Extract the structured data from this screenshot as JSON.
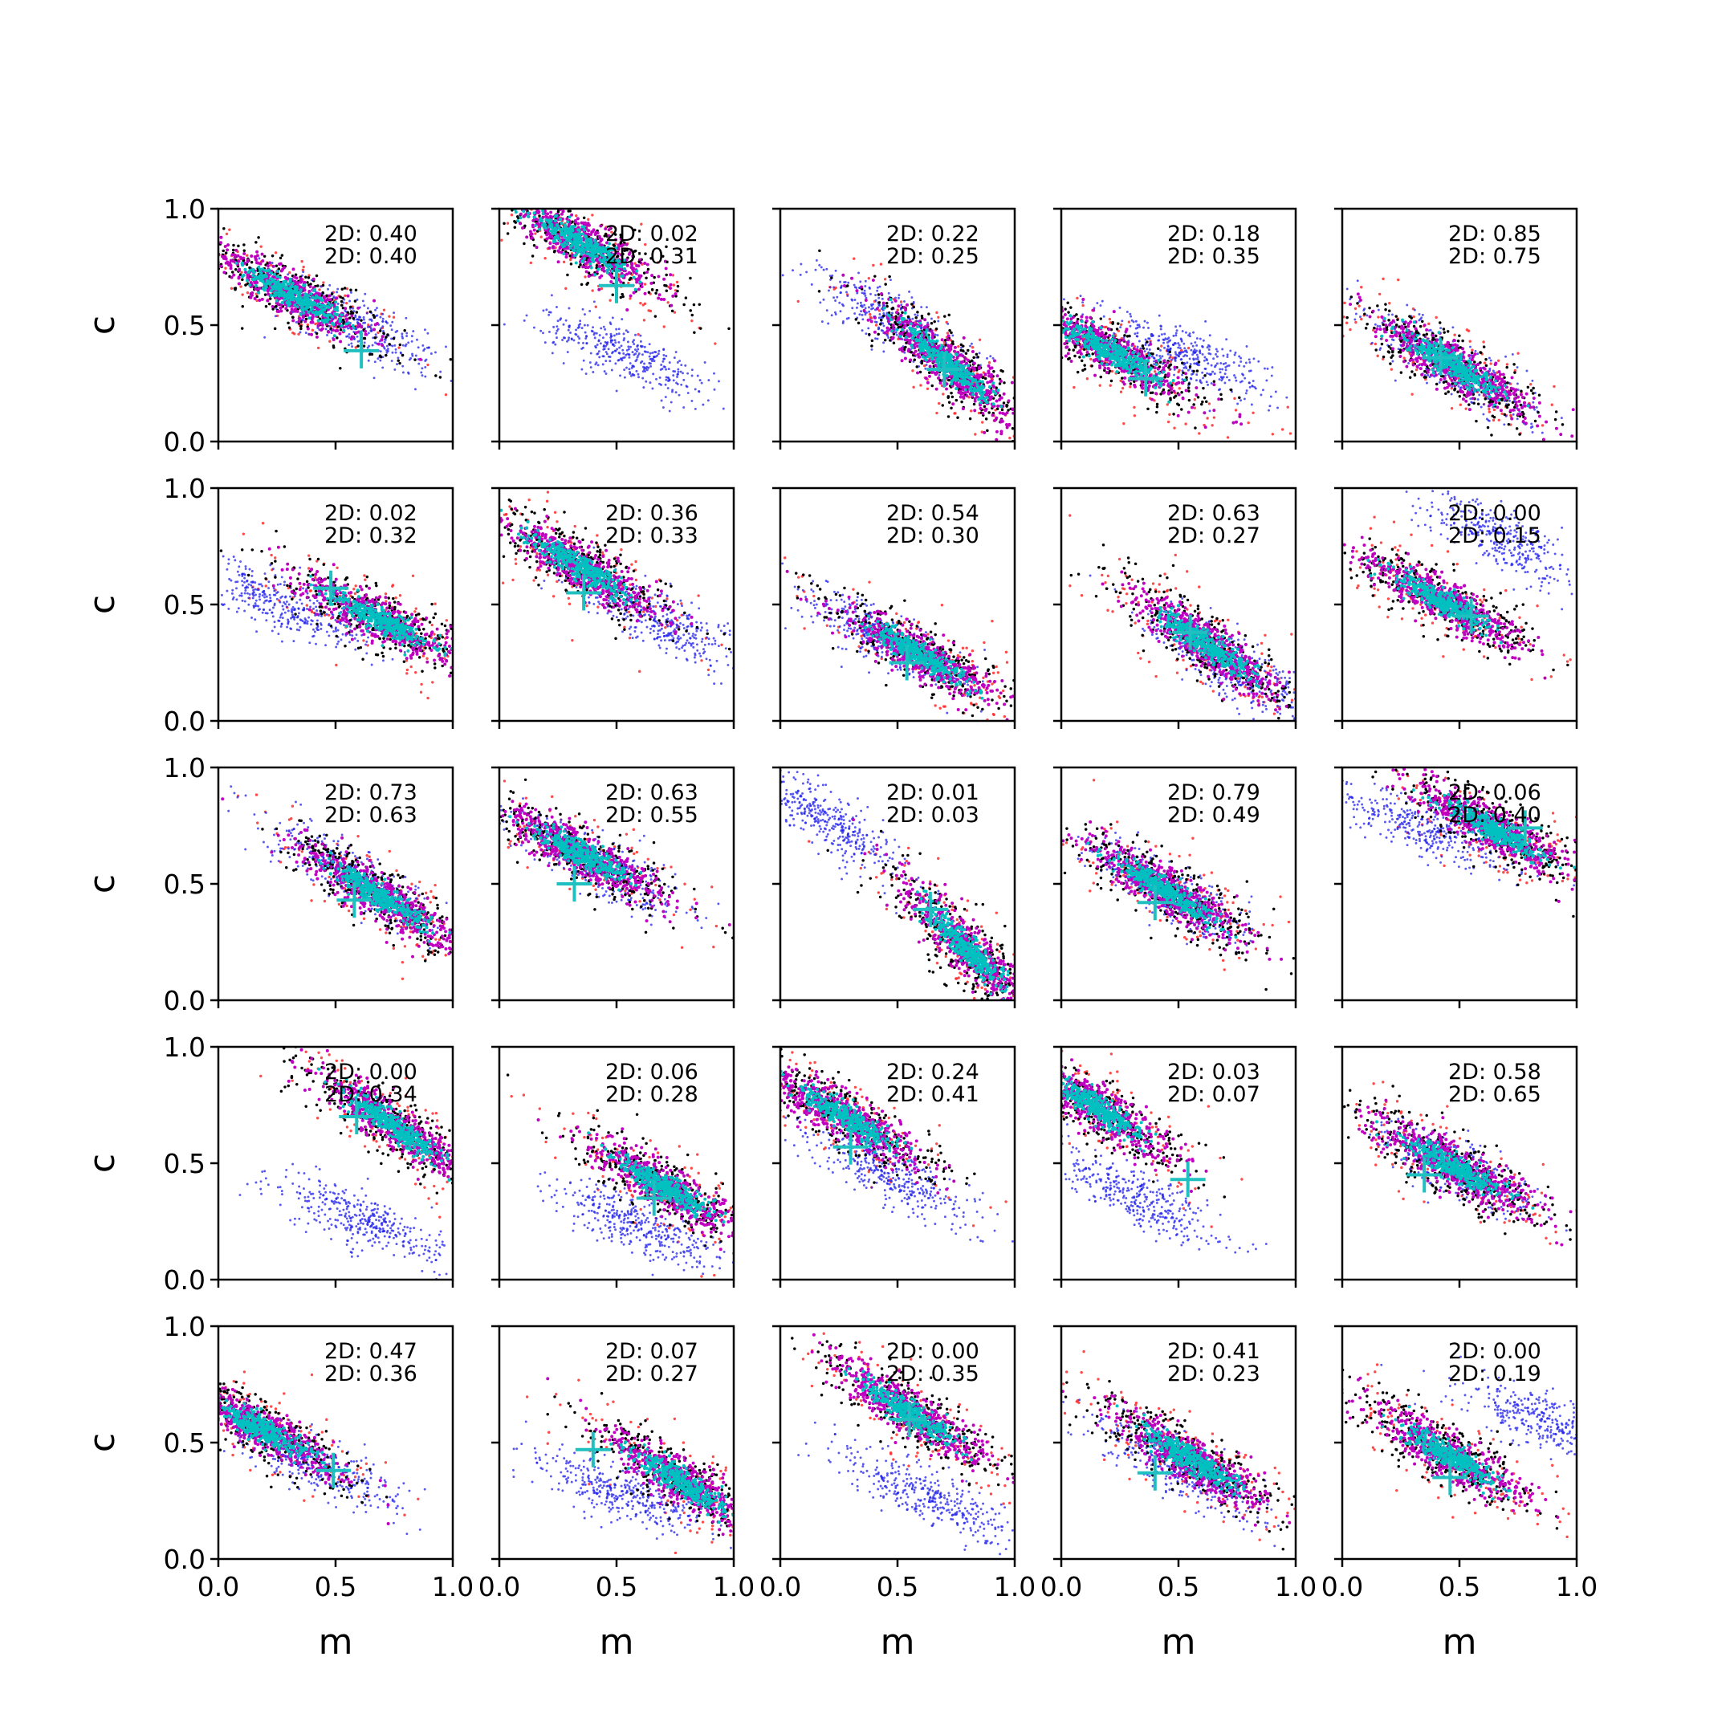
{
  "chart_data": {
    "type": "scatter",
    "layout": {
      "rows": 5,
      "cols": 5
    },
    "xlabel": "m",
    "ylabel": "c",
    "xlim": [
      0,
      1
    ],
    "ylim": [
      0,
      1
    ],
    "xticks": [
      "0.0",
      "0.5",
      "1.0"
    ],
    "yticks": [
      "0.0",
      "0.5",
      "1.0"
    ],
    "grid": false,
    "colors": {
      "outer_red": "#ff2a2a",
      "black": "#000000",
      "blue": "#2222ee",
      "magenta": "#c000c0",
      "cyan": "#00c0c0",
      "marker": "#20c0c0"
    },
    "panels": [
      {
        "labels": [
          "2D: 0.40",
          "2D: 0.40"
        ],
        "main": {
          "m": 0.32,
          "c": 0.63,
          "slope": -0.55
        },
        "blue": {
          "m": 0.58,
          "c": 0.5,
          "slope": -0.55
        },
        "marker": {
          "m": 0.61,
          "c": 0.39
        }
      },
      {
        "labels": [
          "2D: 0.02",
          "2D: 0.31"
        ],
        "main": {
          "m": 0.35,
          "c": 0.85,
          "slope": -0.6
        },
        "blue": {
          "m": 0.55,
          "c": 0.37,
          "slope": -0.45
        },
        "marker": {
          "m": 0.5,
          "c": 0.67
        }
      },
      {
        "labels": [
          "2D: 0.22",
          "2D: 0.25"
        ],
        "main": {
          "m": 0.72,
          "c": 0.33,
          "slope": -0.85
        },
        "blue": {
          "m": 0.5,
          "c": 0.5,
          "slope": -0.6
        },
        "marker": {
          "m": 0.7,
          "c": 0.31
        }
      },
      {
        "labels": [
          "2D: 0.18",
          "2D: 0.35"
        ],
        "main": {
          "m": 0.22,
          "c": 0.38,
          "slope": -0.55
        },
        "blue": {
          "m": 0.52,
          "c": 0.38,
          "slope": -0.4
        },
        "marker": {
          "m": 0.36,
          "c": 0.27
        }
      },
      {
        "labels": [
          "2D: 0.85",
          "2D: 0.75"
        ],
        "main": {
          "m": 0.48,
          "c": 0.32,
          "slope": -0.6
        },
        "blue": {
          "m": 0.48,
          "c": 0.32,
          "slope": -0.6
        },
        "marker": {
          "m": 0.42,
          "c": 0.36
        }
      },
      {
        "labels": [
          "2D: 0.02",
          "2D: 0.32"
        ],
        "main": {
          "m": 0.7,
          "c": 0.43,
          "slope": -0.5
        },
        "blue": {
          "m": 0.28,
          "c": 0.5,
          "slope": -0.45
        },
        "marker": {
          "m": 0.48,
          "c": 0.57
        }
      },
      {
        "labels": [
          "2D: 0.36",
          "2D: 0.33"
        ],
        "main": {
          "m": 0.35,
          "c": 0.66,
          "slope": -0.6
        },
        "blue": {
          "m": 0.68,
          "c": 0.43,
          "slope": -0.5
        },
        "marker": {
          "m": 0.36,
          "c": 0.55
        }
      },
      {
        "labels": [
          "2D: 0.54",
          "2D: 0.30"
        ],
        "main": {
          "m": 0.6,
          "c": 0.28,
          "slope": -0.55
        },
        "blue": {
          "m": 0.42,
          "c": 0.36,
          "slope": -0.55
        },
        "marker": {
          "m": 0.54,
          "c": 0.25
        }
      },
      {
        "labels": [
          "2D: 0.63",
          "2D: 0.27"
        ],
        "main": {
          "m": 0.62,
          "c": 0.33,
          "slope": -0.7
        },
        "blue": {
          "m": 0.72,
          "c": 0.24,
          "slope": -0.6
        },
        "marker": {
          "m": 0.55,
          "c": 0.38
        }
      },
      {
        "labels": [
          "2D: 0.00",
          "2D: 0.15"
        ],
        "main": {
          "m": 0.42,
          "c": 0.52,
          "slope": -0.55
        },
        "blue": {
          "m": 0.68,
          "c": 0.78,
          "slope": -0.55
        },
        "marker": {
          "m": 0.55,
          "c": 0.45
        }
      },
      {
        "labels": [
          "2D: 0.73",
          "2D: 0.63"
        ],
        "main": {
          "m": 0.68,
          "c": 0.45,
          "slope": -0.65
        },
        "blue": {
          "m": 0.55,
          "c": 0.55,
          "slope": -0.6
        },
        "marker": {
          "m": 0.58,
          "c": 0.43
        }
      },
      {
        "labels": [
          "2D: 0.63",
          "2D: 0.55"
        ],
        "main": {
          "m": 0.35,
          "c": 0.63,
          "slope": -0.55
        },
        "blue": {
          "m": 0.42,
          "c": 0.58,
          "slope": -0.55
        },
        "marker": {
          "m": 0.32,
          "c": 0.5
        }
      },
      {
        "labels": [
          "2D: 0.01",
          "2D: 0.03"
        ],
        "main": {
          "m": 0.8,
          "c": 0.22,
          "slope": -1.0
        },
        "blue": {
          "m": 0.22,
          "c": 0.76,
          "slope": -0.7
        },
        "marker": {
          "m": 0.64,
          "c": 0.39
        }
      },
      {
        "labels": [
          "2D: 0.79",
          "2D: 0.49"
        ],
        "main": {
          "m": 0.45,
          "c": 0.47,
          "slope": -0.6
        },
        "blue": {
          "m": 0.45,
          "c": 0.47,
          "slope": -0.6
        },
        "marker": {
          "m": 0.4,
          "c": 0.42
        }
      },
      {
        "labels": [
          "2D: 0.06",
          "2D: 0.40"
        ],
        "main": {
          "m": 0.65,
          "c": 0.73,
          "slope": -0.55
        },
        "blue": {
          "m": 0.35,
          "c": 0.73,
          "slope": -0.4
        },
        "marker": {
          "m": 0.78,
          "c": 0.74
        }
      },
      {
        "labels": [
          "2D: 0.00",
          "2D: 0.34"
        ],
        "main": {
          "m": 0.75,
          "c": 0.66,
          "slope": -0.7
        },
        "blue": {
          "m": 0.62,
          "c": 0.25,
          "slope": -0.45
        },
        "marker": {
          "m": 0.59,
          "c": 0.7
        }
      },
      {
        "labels": [
          "2D: 0.06",
          "2D: 0.28"
        ],
        "main": {
          "m": 0.7,
          "c": 0.4,
          "slope": -0.6
        },
        "blue": {
          "m": 0.6,
          "c": 0.23,
          "slope": -0.45
        },
        "marker": {
          "m": 0.66,
          "c": 0.35
        }
      },
      {
        "labels": [
          "2D: 0.24",
          "2D: 0.41"
        ],
        "main": {
          "m": 0.28,
          "c": 0.7,
          "slope": -0.6
        },
        "blue": {
          "m": 0.48,
          "c": 0.44,
          "slope": -0.55
        },
        "marker": {
          "m": 0.3,
          "c": 0.57
        }
      },
      {
        "labels": [
          "2D: 0.03",
          "2D: 0.07"
        ],
        "main": {
          "m": 0.15,
          "c": 0.74,
          "slope": -0.65
        },
        "blue": {
          "m": 0.33,
          "c": 0.35,
          "slope": -0.5
        },
        "marker": {
          "m": 0.54,
          "c": 0.43
        }
      },
      {
        "labels": [
          "2D: 0.58",
          "2D: 0.65"
        ],
        "main": {
          "m": 0.48,
          "c": 0.48,
          "slope": -0.55
        },
        "blue": {
          "m": 0.48,
          "c": 0.48,
          "slope": -0.55
        },
        "marker": {
          "m": 0.35,
          "c": 0.45
        }
      },
      {
        "labels": [
          "2D: 0.47",
          "2D: 0.36"
        ],
        "main": {
          "m": 0.18,
          "c": 0.56,
          "slope": -0.55
        },
        "blue": {
          "m": 0.4,
          "c": 0.42,
          "slope": -0.5
        },
        "marker": {
          "m": 0.49,
          "c": 0.38
        }
      },
      {
        "labels": [
          "2D: 0.07",
          "2D: 0.27"
        ],
        "main": {
          "m": 0.78,
          "c": 0.33,
          "slope": -0.65
        },
        "blue": {
          "m": 0.52,
          "c": 0.28,
          "slope": -0.4
        },
        "marker": {
          "m": 0.4,
          "c": 0.47
        }
      },
      {
        "labels": [
          "2D: 0.00",
          "2D: 0.35"
        ],
        "main": {
          "m": 0.55,
          "c": 0.63,
          "slope": -0.65
        },
        "blue": {
          "m": 0.62,
          "c": 0.27,
          "slope": -0.45
        },
        "marker": {
          "m": 0.55,
          "c": 0.6
        }
      },
      {
        "labels": [
          "2D: 0.41",
          "2D: 0.23"
        ],
        "main": {
          "m": 0.55,
          "c": 0.43,
          "slope": -0.6
        },
        "blue": {
          "m": 0.5,
          "c": 0.38,
          "slope": -0.55
        },
        "marker": {
          "m": 0.4,
          "c": 0.37
        }
      },
      {
        "labels": [
          "2D: 0.00",
          "2D: 0.19"
        ],
        "main": {
          "m": 0.45,
          "c": 0.45,
          "slope": -0.6
        },
        "blue": {
          "m": 0.88,
          "c": 0.58,
          "slope": -0.4
        },
        "marker": {
          "m": 0.46,
          "c": 0.35
        }
      }
    ]
  }
}
